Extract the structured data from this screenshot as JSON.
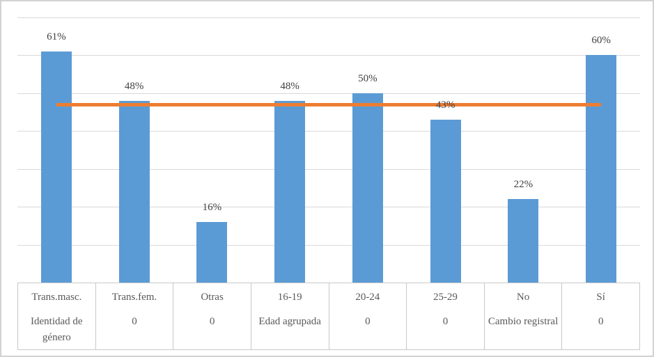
{
  "chart_data": {
    "type": "bar",
    "title": "",
    "categories": [
      "Trans.masc.",
      "Trans.fem.",
      "Otras",
      "16-19",
      "20-24",
      "25-29",
      "No",
      "Sí"
    ],
    "group_labels": [
      "Identidad de género",
      "0",
      "0",
      "Edad agrupada",
      "0",
      "0",
      "Cambio registral",
      "0"
    ],
    "values": [
      61,
      48,
      16,
      48,
      50,
      43,
      22,
      60
    ],
    "data_labels": [
      "61%",
      "48%",
      "16%",
      "48%",
      "50%",
      "43%",
      "22%",
      "60%"
    ],
    "ylim": [
      0,
      70
    ],
    "gridline_step": 10,
    "grid": true,
    "legend": "none",
    "reference_line": {
      "value": 47,
      "color": "#ED7D31"
    },
    "bar_color": "#5B9BD5",
    "gridline_color": "#D9D9D9",
    "axis_border_color": "#C8C8C8",
    "data_label_color": "#3F3F3F",
    "category_text_color": "#595959"
  }
}
